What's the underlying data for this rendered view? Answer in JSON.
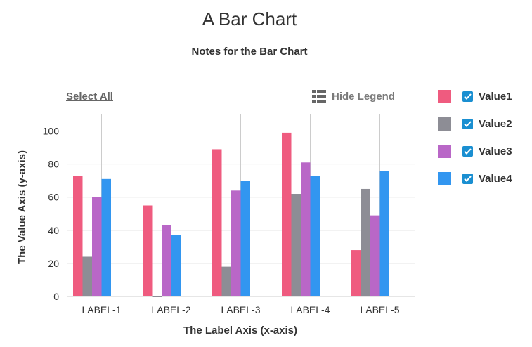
{
  "chart_data": {
    "type": "bar",
    "title": "A Bar Chart",
    "subtitle": "Notes for the Bar Chart",
    "xlabel": "The Label Axis (x-axis)",
    "ylabel": "The Value Axis (y-axis)",
    "ylim": [
      0,
      110
    ],
    "yticks": [
      0,
      20,
      40,
      60,
      80,
      100
    ],
    "grid": true,
    "categories": [
      "LABEL-1",
      "LABEL-2",
      "LABEL-3",
      "LABEL-4",
      "LABEL-5"
    ],
    "series": [
      {
        "name": "Value1",
        "color": "#ef5b7f",
        "values": [
          73,
          55,
          89,
          99,
          28
        ]
      },
      {
        "name": "Value2",
        "color": "#8d8d95",
        "values": [
          24,
          0,
          18,
          62,
          65
        ]
      },
      {
        "name": "Value3",
        "color": "#b967c7",
        "values": [
          60,
          43,
          64,
          81,
          49
        ]
      },
      {
        "name": "Value4",
        "color": "#3296f0",
        "values": [
          71,
          37,
          70,
          73,
          76
        ]
      }
    ],
    "legend_position": "right"
  },
  "controls": {
    "select_all": "Select All",
    "hide_legend": "Hide Legend",
    "hide_legend_icon": "list-icon"
  }
}
